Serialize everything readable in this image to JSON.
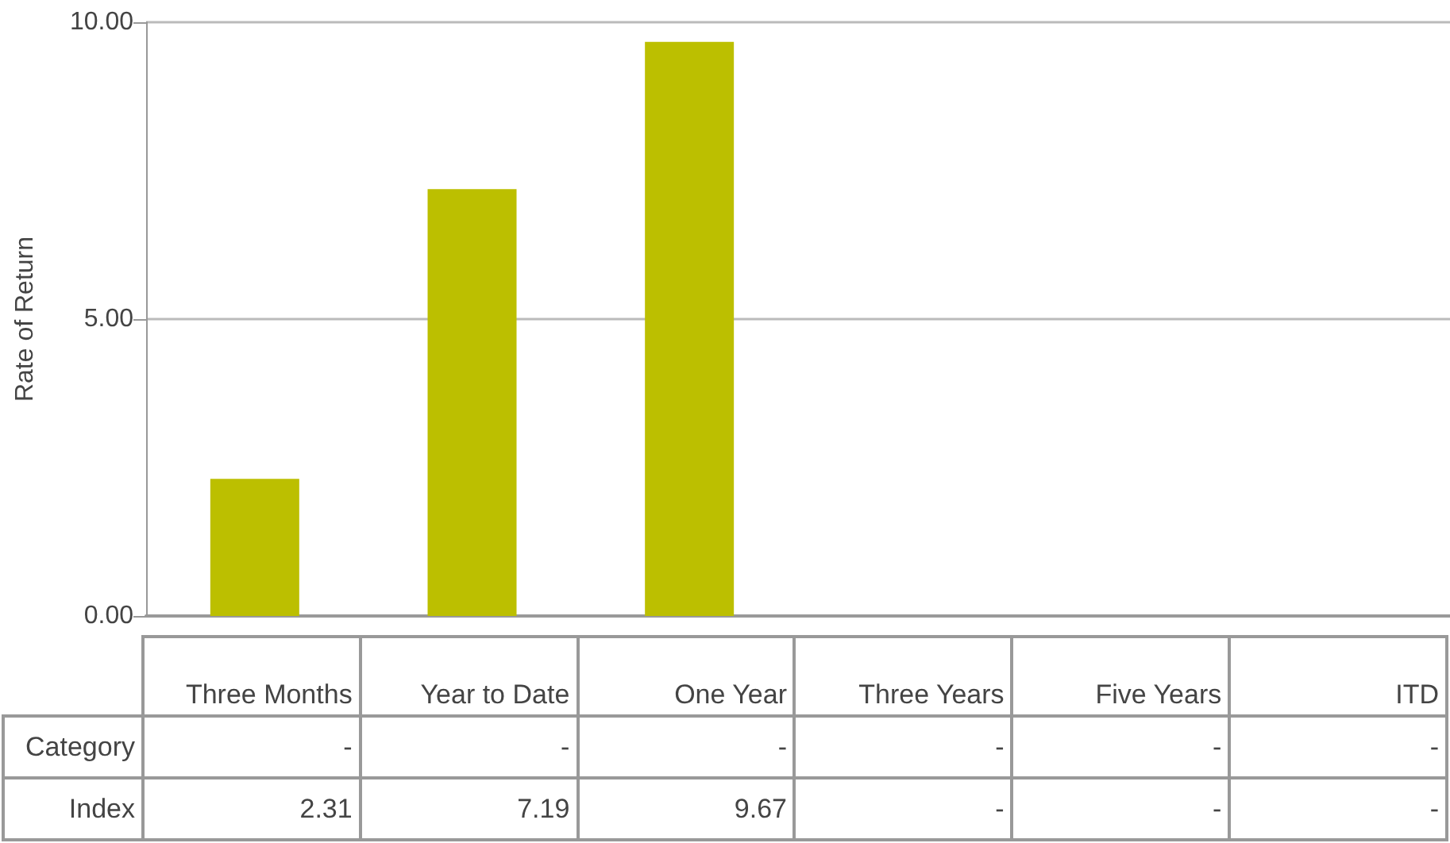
{
  "chart_data": {
    "type": "bar",
    "ylabel": "Rate of Return",
    "categories": [
      "Three Months",
      "Year to Date",
      "One Year",
      "Three Years",
      "Five Years",
      "ITD"
    ],
    "series": [
      {
        "name": "Category",
        "values": [
          null,
          null,
          null,
          null,
          null,
          null
        ],
        "value_labels": [
          "-",
          "-",
          "-",
          "-",
          "-",
          "-"
        ]
      },
      {
        "name": "Index",
        "color": "#bcbf00",
        "values": [
          2.31,
          7.19,
          9.67,
          null,
          null,
          null
        ],
        "value_labels": [
          "2.31",
          "7.19",
          "9.67",
          "-",
          "-",
          "-"
        ]
      }
    ],
    "ylim": [
      0,
      10
    ],
    "yticks": [
      {
        "value": 0,
        "label": "0.00"
      },
      {
        "value": 5,
        "label": "5.00"
      },
      {
        "value": 10,
        "label": "10.00"
      }
    ],
    "grid": "y"
  }
}
